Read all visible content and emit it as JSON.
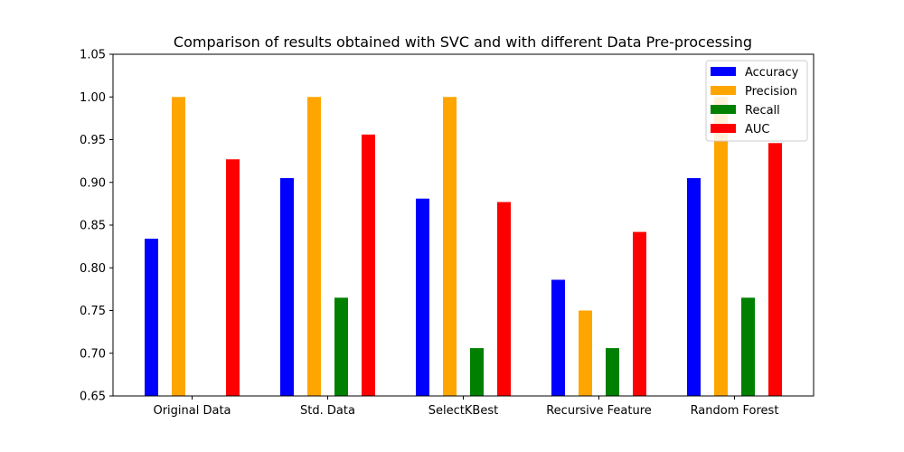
{
  "chart_data": {
    "type": "bar",
    "title": "Comparison of results obtained with SVC and with different Data Pre-processing",
    "xlabel": "",
    "ylabel": "",
    "categories": [
      "Original Data",
      "Std. Data",
      "SelectKBest",
      "Recursive Feature",
      "Random Forest"
    ],
    "series": [
      {
        "name": "Accuracy",
        "color": "#0000ff",
        "values": [
          0.834,
          0.905,
          0.881,
          0.786,
          0.905
        ]
      },
      {
        "name": "Precision",
        "color": "#ffa500",
        "values": [
          1.0,
          1.0,
          1.0,
          0.75,
          1.0
        ]
      },
      {
        "name": "Recall",
        "color": "#008000",
        "values": [
          0.647,
          0.765,
          0.706,
          0.706,
          0.765
        ]
      },
      {
        "name": "AUC",
        "color": "#ff0000",
        "values": [
          0.927,
          0.956,
          0.877,
          0.842,
          0.946
        ]
      }
    ],
    "ylim": [
      0.65,
      1.05
    ],
    "yticks": [
      "0.65",
      "0.70",
      "0.75",
      "0.80",
      "0.85",
      "0.90",
      "0.95",
      "1.00",
      "1.05"
    ],
    "grid": false,
    "legend_position": "top-right"
  }
}
